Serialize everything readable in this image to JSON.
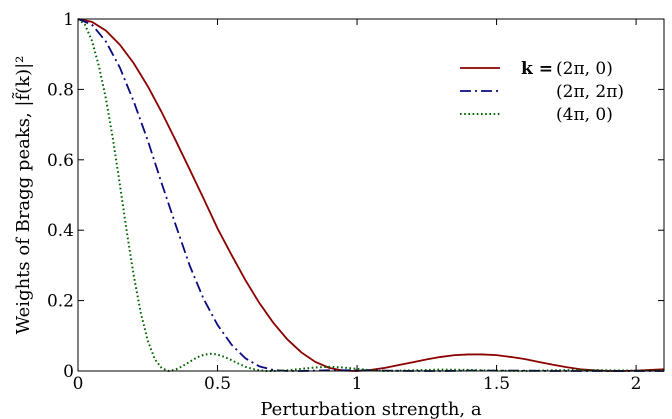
{
  "chart_data": {
    "type": "line",
    "title": "",
    "xlabel": "Perturbation strength, a",
    "ylabel": "Weights of Bragg peaks, |f̃(k)|²",
    "xlim": [
      0,
      2.1
    ],
    "ylim": [
      0,
      1
    ],
    "x_ticks": [
      0,
      0.5,
      1,
      1.5,
      2
    ],
    "x_tick_labels": [
      "0",
      "0.5",
      "1",
      "1.5",
      "2"
    ],
    "y_ticks": [
      0,
      0.2,
      0.4,
      0.6,
      0.8,
      1
    ],
    "y_tick_labels": [
      "0",
      "0.2",
      "0.4",
      "0.6",
      "0.8",
      "1"
    ],
    "grid": false,
    "legend_position": "top-right",
    "legend_prefix": "k =",
    "series": [
      {
        "name": "(2π, 0)",
        "color": "#8b0000",
        "style": "solid",
        "x": [
          0,
          0.05,
          0.1,
          0.15,
          0.2,
          0.25,
          0.3,
          0.35,
          0.4,
          0.45,
          0.5,
          0.55,
          0.6,
          0.65,
          0.7,
          0.75,
          0.8,
          0.85,
          0.9,
          0.95,
          1.0,
          1.05,
          1.1,
          1.15,
          1.2,
          1.25,
          1.3,
          1.35,
          1.4,
          1.45,
          1.5,
          1.55,
          1.6,
          1.65,
          1.7,
          1.75,
          1.8,
          1.85,
          1.9,
          1.95,
          2.0,
          2.05,
          2.1
        ],
        "y": [
          1.0,
          0.992,
          0.967,
          0.927,
          0.874,
          0.809,
          0.735,
          0.655,
          0.573,
          0.49,
          0.405,
          0.33,
          0.258,
          0.193,
          0.137,
          0.09,
          0.053,
          0.026,
          0.009,
          0.001,
          0.0,
          0.003,
          0.009,
          0.017,
          0.025,
          0.033,
          0.04,
          0.045,
          0.047,
          0.047,
          0.045,
          0.04,
          0.034,
          0.026,
          0.018,
          0.011,
          0.005,
          0.002,
          0.0,
          0.0,
          0.001,
          0.003,
          0.005
        ]
      },
      {
        "name": "(2π, 2π)",
        "color": "#0a0a80",
        "style": "dashdot",
        "x": [
          0,
          0.05,
          0.1,
          0.15,
          0.2,
          0.25,
          0.3,
          0.35,
          0.4,
          0.45,
          0.5,
          0.55,
          0.6,
          0.65,
          0.7,
          0.75,
          0.8,
          0.85,
          0.9,
          0.95,
          1.0,
          1.05,
          1.1,
          1.2,
          1.3,
          1.4,
          1.5,
          1.6,
          1.7,
          1.8,
          1.9,
          2.0,
          2.1
        ],
        "y": [
          1.0,
          0.984,
          0.936,
          0.862,
          0.765,
          0.655,
          0.533,
          0.415,
          0.3,
          0.205,
          0.131,
          0.075,
          0.036,
          0.013,
          0.003,
          0.0,
          0.0,
          0.001,
          0.002,
          0.002,
          0.002,
          0.002,
          0.001,
          0.0,
          0.0,
          0.001,
          0.001,
          0.001,
          0.0,
          0.0,
          0.0,
          0.0,
          0.0
        ]
      },
      {
        "name": "(4π, 0)",
        "color": "#006400",
        "style": "dotted",
        "x": [
          0,
          0.025,
          0.05,
          0.075,
          0.1,
          0.125,
          0.15,
          0.175,
          0.2,
          0.225,
          0.25,
          0.275,
          0.3,
          0.325,
          0.35,
          0.375,
          0.4,
          0.425,
          0.45,
          0.475,
          0.5,
          0.525,
          0.55,
          0.575,
          0.6,
          0.625,
          0.65,
          0.675,
          0.7,
          0.75,
          0.8,
          0.85,
          0.9,
          0.95,
          1.0,
          1.05,
          1.1,
          1.2,
          1.3,
          1.4,
          1.5,
          1.6,
          1.7,
          1.8,
          1.9,
          2.0,
          2.1
        ],
        "y": [
          1.0,
          0.984,
          0.938,
          0.866,
          0.774,
          0.66,
          0.53,
          0.395,
          0.27,
          0.165,
          0.086,
          0.034,
          0.008,
          0.0,
          0.004,
          0.014,
          0.026,
          0.038,
          0.046,
          0.049,
          0.047,
          0.04,
          0.031,
          0.021,
          0.012,
          0.006,
          0.002,
          0.0,
          0.0,
          0.002,
          0.006,
          0.01,
          0.012,
          0.01,
          0.006,
          0.002,
          0.0,
          0.002,
          0.004,
          0.003,
          0.001,
          0.0,
          0.002,
          0.003,
          0.002,
          0.001,
          0.001
        ]
      }
    ]
  }
}
